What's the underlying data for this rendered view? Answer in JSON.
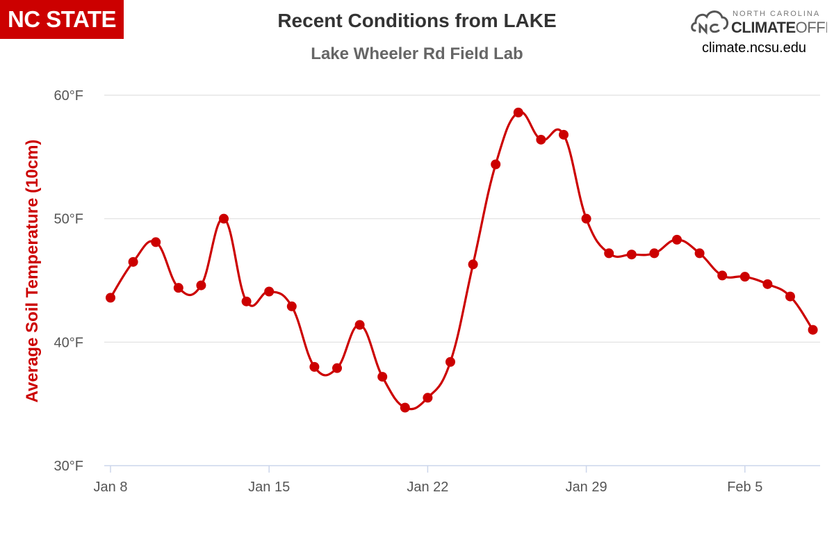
{
  "header": {
    "brand_logo_text": "NC STATE",
    "office_logo_small": "NORTH CAROLINA",
    "office_logo_climate": "CLIMATE",
    "office_logo_office": "OFFICE",
    "office_url": "climate.ncsu.edu"
  },
  "colors": {
    "series": "#cc0000",
    "brand": "#cc0000",
    "grid": "#e0e0e0",
    "axis": "#ccd6eb"
  },
  "chart_data": {
    "type": "line",
    "title": "Recent Conditions from LAKE",
    "subtitle": "Lake Wheeler Rd Field Lab",
    "ylabel": "Average Soil Temperature (10cm)",
    "xlabel": "",
    "ylim": [
      30,
      60
    ],
    "y_ticks": [
      "30°F",
      "40°F",
      "50°F",
      "60°F"
    ],
    "y_tick_values": [
      30,
      40,
      50,
      60
    ],
    "x_ticks": [
      "Jan 8",
      "Jan 15",
      "Jan 22",
      "Jan 29",
      "Feb 5"
    ],
    "x_tick_values": [
      "Jan 8",
      "Jan 15",
      "Jan 22",
      "Jan 29",
      "Feb 5"
    ],
    "grid": true,
    "legend": "none",
    "x": [
      "Jan 8",
      "Jan 9",
      "Jan 10",
      "Jan 11",
      "Jan 12",
      "Jan 13",
      "Jan 14",
      "Jan 15",
      "Jan 16",
      "Jan 17",
      "Jan 18",
      "Jan 19",
      "Jan 20",
      "Jan 21",
      "Jan 22",
      "Jan 23",
      "Jan 24",
      "Jan 25",
      "Jan 26",
      "Jan 27",
      "Jan 28",
      "Jan 29",
      "Jan 30",
      "Jan 31",
      "Feb 1",
      "Feb 2",
      "Feb 3",
      "Feb 4",
      "Feb 5",
      "Feb 6",
      "Feb 7",
      "Feb 8"
    ],
    "values": [
      43.6,
      46.5,
      48.1,
      44.4,
      44.6,
      50.0,
      43.3,
      44.1,
      42.9,
      38.0,
      37.9,
      41.4,
      37.2,
      34.7,
      35.5,
      38.4,
      46.3,
      54.4,
      58.6,
      56.4,
      56.8,
      50.0,
      47.2,
      47.1,
      47.2,
      48.3,
      47.2,
      45.4,
      45.3,
      44.7,
      43.7,
      41.0
    ]
  }
}
